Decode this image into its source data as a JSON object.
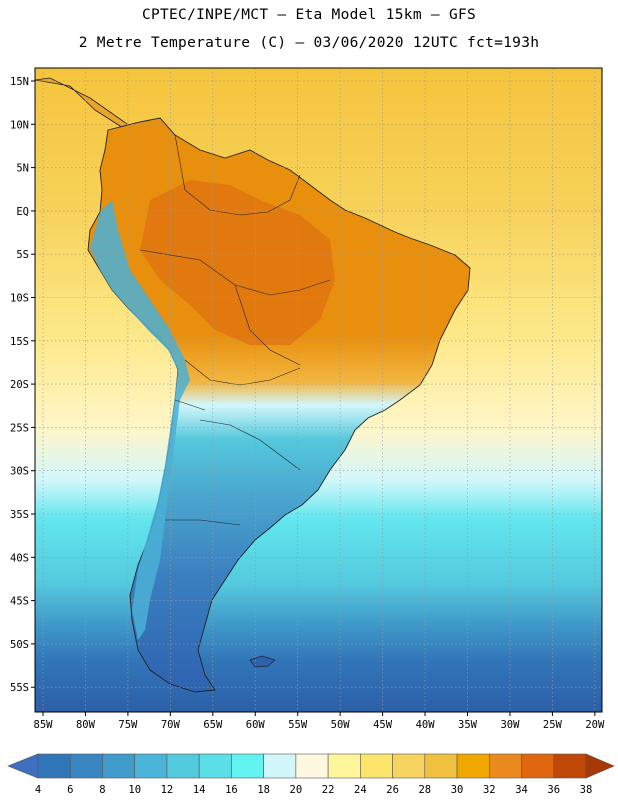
{
  "header": {
    "line1": "CPTEC/INPE/MCT –  Eta Model 15km – GFS",
    "line2": "2 Metre Temperature (C) – 03/06/2020 12UTC fct=193h"
  },
  "axes": {
    "lat_labels": [
      "15N",
      "10N",
      "5N",
      "EQ",
      "5S",
      "10S",
      "15S",
      "20S",
      "25S",
      "30S",
      "35S",
      "40S",
      "45S",
      "50S",
      "55S"
    ],
    "lon_labels": [
      "85W",
      "80W",
      "75W",
      "70W",
      "65W",
      "60W",
      "55W",
      "50W",
      "45W",
      "40W",
      "35W",
      "30W",
      "25W",
      "20W"
    ]
  },
  "colorbar": {
    "labels": [
      "4",
      "6",
      "8",
      "10",
      "12",
      "14",
      "16",
      "18",
      "20",
      "22",
      "24",
      "26",
      "28",
      "30",
      "32",
      "34",
      "36",
      "38"
    ],
    "colors": [
      "#3f6fc0",
      "#3176b8",
      "#3a86c2",
      "#409ccb",
      "#4cb4d8",
      "#54cadf",
      "#5cdfe8",
      "#62f2f0",
      "#d2f7fb",
      "#fff8e0",
      "#fff59a",
      "#fde56c",
      "#f7d460",
      "#f0c040",
      "#f0a800",
      "#ea8a1e",
      "#e06610",
      "#c04806",
      "#a83806"
    ]
  }
}
